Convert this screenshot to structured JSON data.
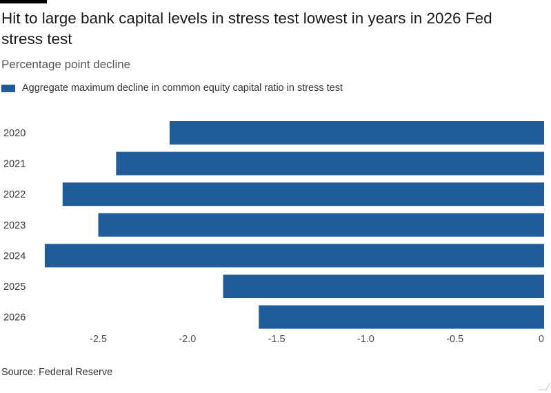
{
  "chart_data": {
    "type": "bar",
    "orientation": "horizontal",
    "title": "Hit to large bank capital levels in stress test lowest in years in 2026 Fed stress test",
    "subtitle": "Percentage point decline",
    "categories": [
      "2020",
      "2021",
      "2022",
      "2023",
      "2024",
      "2025",
      "2026"
    ],
    "series": [
      {
        "name": "Aggregate maximum decline in common equity capital ratio in stress test",
        "values": [
          -2.1,
          -2.4,
          -2.7,
          -2.5,
          -2.8,
          -1.8,
          -1.6
        ],
        "color": "#1f5c99"
      }
    ],
    "xlim": [
      -2.8,
      0
    ],
    "x_ticks": [
      -2.5,
      -2.0,
      -1.5,
      -1.0,
      -0.5,
      0
    ],
    "x_tick_labels": [
      "-2.5",
      "-2.0",
      "-1.5",
      "-1.0",
      "-0.5",
      "0"
    ],
    "grid": false,
    "legend_position": "top-left",
    "source": "Source: Federal Reserve"
  }
}
